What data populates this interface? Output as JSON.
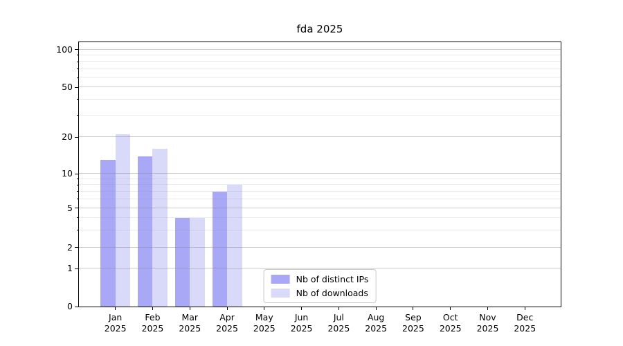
{
  "chart_data": {
    "type": "bar",
    "title": "fda 2025",
    "categories": [
      "Jan",
      "Feb",
      "Mar",
      "Apr",
      "May",
      "Jun",
      "Jul",
      "Aug",
      "Sep",
      "Oct",
      "Nov",
      "Dec"
    ],
    "x_tick_second_line": "2025",
    "series": [
      {
        "name": "Nb of distinct IPs",
        "color": "#a8a8f6",
        "values": [
          13,
          14,
          4,
          7,
          0,
          0,
          0,
          0,
          0,
          0,
          0,
          0
        ]
      },
      {
        "name": "Nb of downloads",
        "color": "#d9d9f9",
        "values": [
          21,
          16,
          4,
          8,
          0,
          0,
          0,
          0,
          0,
          0,
          0,
          0
        ]
      }
    ],
    "y_ticks": [
      0,
      1,
      2,
      5,
      10,
      20,
      50,
      100
    ],
    "y_minor_ticks": [
      3,
      4,
      6,
      7,
      8,
      9,
      30,
      40,
      60,
      70,
      80,
      90
    ],
    "yscale": "log-like",
    "ylim": [
      0,
      114
    ],
    "xlabel": "",
    "ylabel": "",
    "grid": "both",
    "legend_position": "lower center",
    "colors": {
      "background": "#ffffff",
      "axis": "#000000",
      "grid_major": "#c6c6c6",
      "grid_minor": "#e7e7e7",
      "legend_border": "#c8c8c8",
      "text": "#000000"
    }
  }
}
